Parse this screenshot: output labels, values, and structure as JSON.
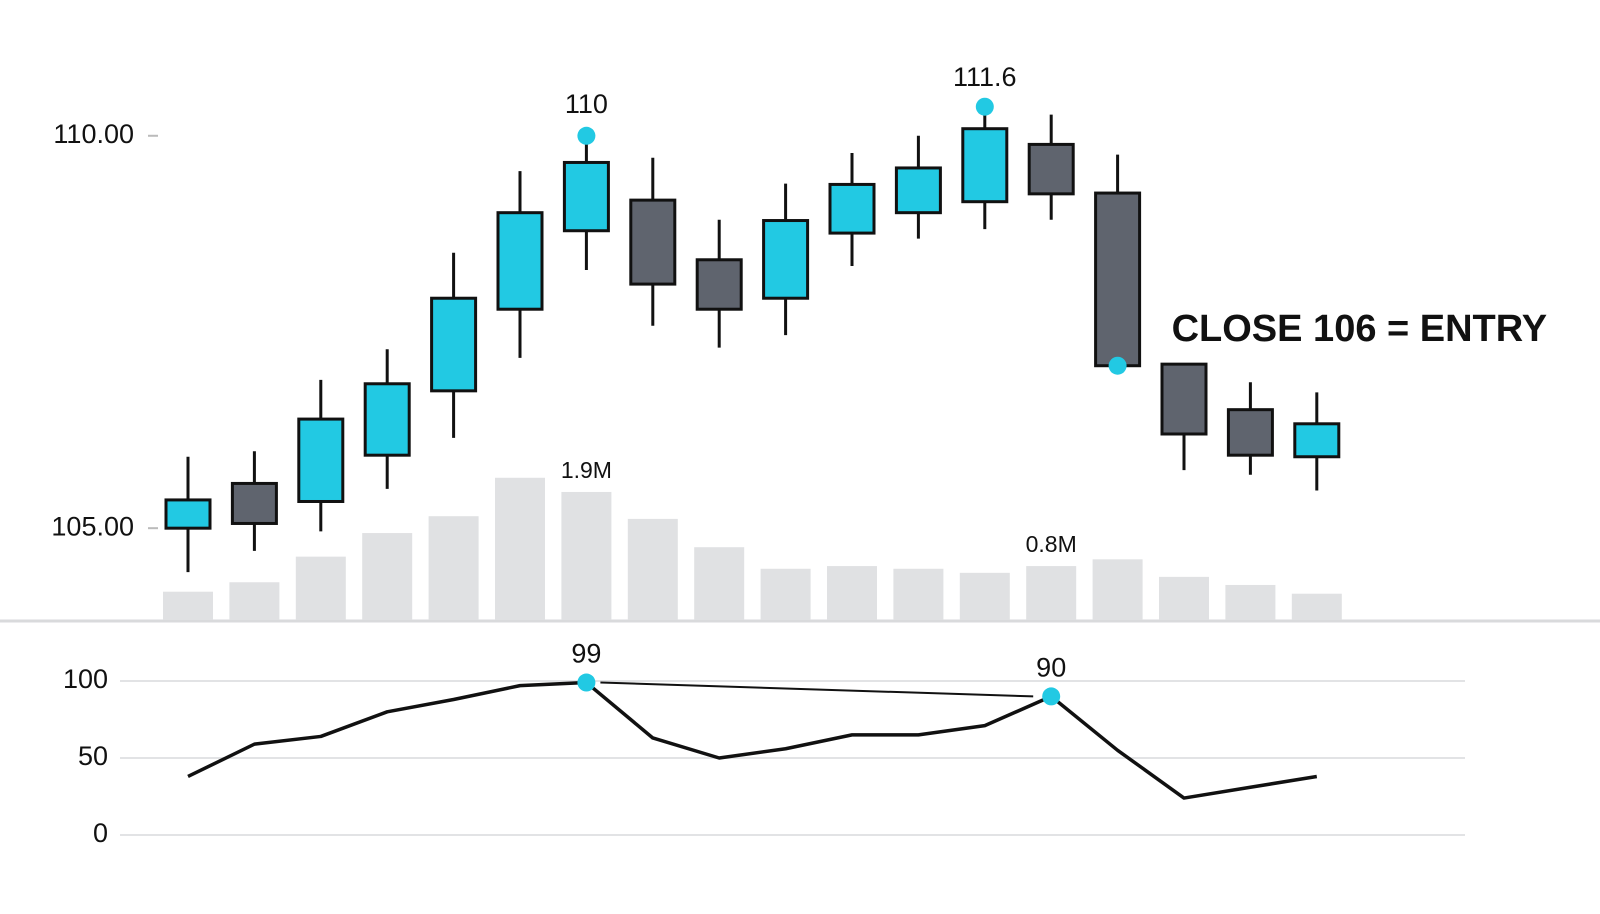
{
  "chart_data": [
    {
      "type": "candlestick",
      "open": [
        105.0,
        105.57,
        105.34,
        105.93,
        106.75,
        107.79,
        108.79,
        109.18,
        108.42,
        107.93,
        108.76,
        109.02,
        109.16,
        109.89,
        109.27,
        107.09,
        106.51,
        105.91
      ],
      "high": [
        105.91,
        105.98,
        106.89,
        107.28,
        108.51,
        109.55,
        110.0,
        109.72,
        108.93,
        109.39,
        109.78,
        110.0,
        110.37,
        110.27,
        109.76,
        107.09,
        106.86,
        106.73
      ],
      "low": [
        104.44,
        104.71,
        104.96,
        105.5,
        106.15,
        107.17,
        108.29,
        107.58,
        107.3,
        107.46,
        108.34,
        108.69,
        108.81,
        108.93,
        107.07,
        105.74,
        105.68,
        105.48
      ],
      "close": [
        105.36,
        105.06,
        106.39,
        106.84,
        107.93,
        109.02,
        109.66,
        108.11,
        107.79,
        108.92,
        109.38,
        109.59,
        110.09,
        109.26,
        107.07,
        106.2,
        105.93,
        106.33
      ],
      "up_color": "#22c9e3",
      "down_color": "#5f646e",
      "ylim": [
        103.83,
        111.73
      ],
      "yticks": [
        {
          "value": 105,
          "label": "105.00"
        },
        {
          "value": 110,
          "label": "110.00"
        }
      ],
      "annotations": [
        "110",
        "111.6",
        "CLOSE 106 = ENTRY"
      ]
    },
    {
      "type": "bar",
      "values": [
        0.42,
        0.56,
        0.94,
        1.29,
        1.54,
        2.11,
        1.9,
        1.5,
        1.08,
        0.76,
        0.8,
        0.76,
        0.7,
        0.8,
        0.9,
        0.64,
        0.52,
        0.39
      ],
      "value_labels": [
        null,
        null,
        null,
        null,
        null,
        null,
        "1.9M",
        null,
        null,
        null,
        null,
        null,
        null,
        "0.8M",
        null,
        null,
        null,
        null
      ],
      "color": "#e0e1e3"
    },
    {
      "type": "line",
      "values": [
        38,
        59,
        64,
        80,
        88,
        97,
        99,
        63,
        50,
        56,
        65,
        65,
        71,
        90,
        55,
        24,
        31,
        38
      ],
      "value_labels": [
        null,
        null,
        null,
        null,
        null,
        null,
        "99",
        null,
        null,
        null,
        null,
        null,
        null,
        "90",
        null,
        null,
        null,
        null
      ],
      "color": "#111111",
      "ylim": [
        0,
        100
      ],
      "yticks": [
        0,
        50,
        100
      ],
      "grid": true
    }
  ]
}
